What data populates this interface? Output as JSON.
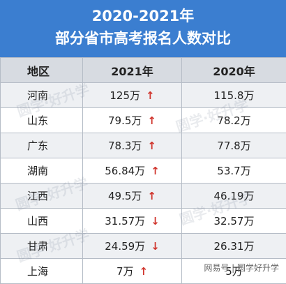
{
  "title": {
    "line1": "2020-2021年",
    "line2": "部分省市高考报名人数对比"
  },
  "table": {
    "headers": [
      "地区",
      "2021年",
      "2020年"
    ],
    "rows": [
      {
        "region": "河南",
        "y2021": "125万",
        "trend": "up",
        "y2020": "115.8万"
      },
      {
        "region": "山东",
        "y2021": "79.5万",
        "trend": "up",
        "y2020": "78.2万"
      },
      {
        "region": "广东",
        "y2021": "78.3万",
        "trend": "up",
        "y2020": "77.8万"
      },
      {
        "region": "湖南",
        "y2021": "56.84万",
        "trend": "up",
        "y2020": "53.7万"
      },
      {
        "region": "江西",
        "y2021": "49.5万",
        "trend": "up",
        "y2020": "46.19万"
      },
      {
        "region": "山西",
        "y2021": "31.57万",
        "trend": "down",
        "y2020": "32.57万"
      },
      {
        "region": "甘肃",
        "y2021": "24.59万",
        "trend": "down",
        "y2020": "26.31万"
      },
      {
        "region": "上海",
        "y2021": "7万",
        "trend": "up",
        "y2020": "5万"
      }
    ]
  },
  "watermark": "圆学·好升学",
  "credit": "网易号 | 圆学好升学",
  "colors": {
    "header_bg": "#3b7ed0",
    "arrow": "#d0342c"
  }
}
